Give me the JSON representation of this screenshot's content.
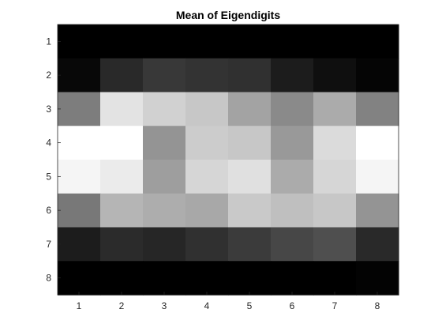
{
  "chart_data": {
    "type": "heatmap",
    "title": "Mean of Eigendigits",
    "xlabel": "",
    "ylabel": "",
    "x_ticks": [
      "1",
      "2",
      "3",
      "4",
      "5",
      "6",
      "7",
      "8"
    ],
    "y_ticks": [
      "1",
      "2",
      "3",
      "4",
      "5",
      "6",
      "7",
      "8"
    ],
    "colormap": "gray",
    "colorbar": false,
    "grid": false,
    "value_range": [
      0,
      1
    ],
    "rows": [
      [
        0.0,
        0.0,
        0.0,
        0.0,
        0.0,
        0.0,
        0.0,
        0.0
      ],
      [
        0.03,
        0.16,
        0.22,
        0.2,
        0.19,
        0.11,
        0.06,
        0.02
      ],
      [
        0.49,
        0.89,
        0.82,
        0.78,
        0.64,
        0.54,
        0.67,
        0.51
      ],
      [
        1.0,
        1.0,
        0.58,
        0.8,
        0.78,
        0.6,
        0.86,
        1.0
      ],
      [
        0.96,
        0.92,
        0.62,
        0.84,
        0.88,
        0.67,
        0.84,
        0.96
      ],
      [
        0.47,
        0.71,
        0.68,
        0.66,
        0.79,
        0.75,
        0.78,
        0.58
      ],
      [
        0.11,
        0.17,
        0.15,
        0.19,
        0.23,
        0.28,
        0.31,
        0.16
      ],
      [
        0.0,
        0.0,
        0.0,
        0.0,
        0.0,
        0.0,
        0.0,
        0.01
      ]
    ]
  }
}
